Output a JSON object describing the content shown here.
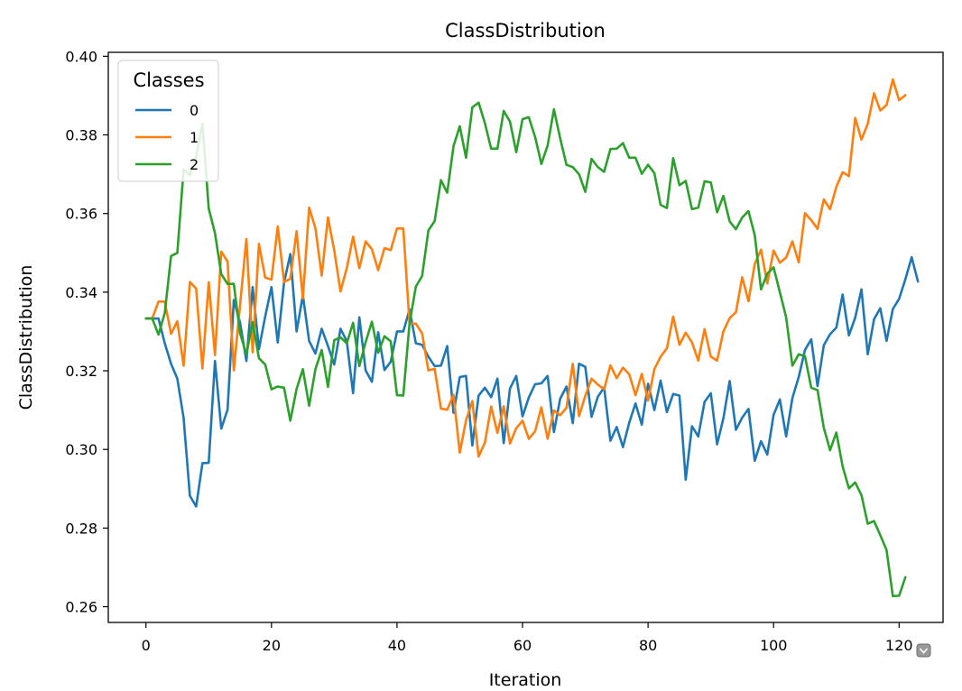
{
  "chart_data": {
    "type": "line",
    "title": "ClassDistribution",
    "xlabel": "Iteration",
    "ylabel": "ClassDistribution",
    "xlim": [
      -6,
      127
    ],
    "ylim": [
      0.256,
      0.401
    ],
    "xticks": [
      "0",
      "20",
      "40",
      "60",
      "80",
      "100",
      "120"
    ],
    "yticks": [
      "0.26",
      "0.28",
      "0.30",
      "0.32",
      "0.34",
      "0.36",
      "0.38",
      "0.40"
    ],
    "grid": false,
    "legend": {
      "title": "Classes",
      "placement": "top-left"
    },
    "series": [
      {
        "name": "0",
        "color": "#1f77b4",
        "values": [
          0.3333,
          0.3333,
          0.3333,
          0.327,
          0.3218,
          0.318,
          0.308,
          0.2882,
          0.2855,
          0.2965,
          0.2966,
          0.3225,
          0.3053,
          0.3101,
          0.338,
          0.3322,
          0.3225,
          0.3413,
          0.3255,
          0.3338,
          0.3413,
          0.3272,
          0.3424,
          0.3497,
          0.33,
          0.3392,
          0.3276,
          0.3244,
          0.3307,
          0.3263,
          0.3216,
          0.3307,
          0.3275,
          0.3143,
          0.3336,
          0.3201,
          0.3172,
          0.3298,
          0.3202,
          0.3223,
          0.33,
          0.33,
          0.3356,
          0.327,
          0.3266,
          0.3236,
          0.3212,
          0.3213,
          0.3263,
          0.3093,
          0.3184,
          0.3187,
          0.301,
          0.3137,
          0.3157,
          0.3133,
          0.318,
          0.3016,
          0.3155,
          0.3187,
          0.3084,
          0.3132,
          0.3166,
          0.3168,
          0.3187,
          0.3044,
          0.3129,
          0.316,
          0.3067,
          0.3218,
          0.321,
          0.3083,
          0.3134,
          0.3158,
          0.3022,
          0.3057,
          0.3006,
          0.3068,
          0.3117,
          0.3063,
          0.3167,
          0.31,
          0.3175,
          0.3095,
          0.3141,
          0.3137,
          0.2923,
          0.3059,
          0.3033,
          0.3121,
          0.3143,
          0.3013,
          0.3079,
          0.3174,
          0.305,
          0.3081,
          0.3103,
          0.2971,
          0.3021,
          0.2987,
          0.3088,
          0.3127,
          0.3033,
          0.3131,
          0.3184,
          0.3253,
          0.328,
          0.3161,
          0.3265,
          0.3293,
          0.331,
          0.3394,
          0.329,
          0.3335,
          0.3407,
          0.3242,
          0.3331,
          0.3359,
          0.3276,
          0.3357,
          0.3383,
          0.3433,
          0.3489,
          0.3427
        ]
      },
      {
        "name": "1",
        "color": "#ff7f0e",
        "values": [
          0.3333,
          0.3333,
          0.3376,
          0.3376,
          0.3294,
          0.3326,
          0.3213,
          0.3426,
          0.3409,
          0.3206,
          0.3425,
          0.324,
          0.3503,
          0.3478,
          0.3201,
          0.3368,
          0.3535,
          0.3247,
          0.3523,
          0.3437,
          0.3432,
          0.3567,
          0.3426,
          0.3434,
          0.3555,
          0.3384,
          0.3615,
          0.3563,
          0.3442,
          0.359,
          0.3506,
          0.3402,
          0.3461,
          0.3541,
          0.3461,
          0.3529,
          0.3509,
          0.3456,
          0.3512,
          0.3507,
          0.3562,
          0.3562,
          0.332,
          0.332,
          0.3295,
          0.3201,
          0.3205,
          0.3104,
          0.3101,
          0.3139,
          0.2992,
          0.3074,
          0.3123,
          0.2982,
          0.3017,
          0.3109,
          0.3042,
          0.311,
          0.3015,
          0.3054,
          0.3073,
          0.3027,
          0.3046,
          0.3107,
          0.3027,
          0.3099,
          0.3087,
          0.3106,
          0.3218,
          0.3085,
          0.3136,
          0.318,
          0.3165,
          0.3153,
          0.3214,
          0.3181,
          0.3208,
          0.3191,
          0.3138,
          0.3192,
          0.3124,
          0.3204,
          0.3236,
          0.3257,
          0.3338,
          0.3266,
          0.3297,
          0.3272,
          0.3226,
          0.3306,
          0.3236,
          0.3226,
          0.33,
          0.3334,
          0.3349,
          0.3438,
          0.3377,
          0.3472,
          0.3508,
          0.3422,
          0.3506,
          0.3475,
          0.3488,
          0.3529,
          0.3476,
          0.3601,
          0.3583,
          0.3561,
          0.3636,
          0.3611,
          0.3668,
          0.3705,
          0.3695,
          0.3843,
          0.3788,
          0.3828,
          0.3906,
          0.3862,
          0.3876,
          0.3941,
          0.3888,
          0.3901
        ]
      },
      {
        "name": "2",
        "color": "#2ca02c",
        "values": [
          0.3333,
          0.3333,
          0.3292,
          0.3347,
          0.3492,
          0.35,
          0.3712,
          0.3698,
          0.3745,
          0.3829,
          0.3613,
          0.355,
          0.3446,
          0.3421,
          0.3421,
          0.3295,
          0.3242,
          0.3324,
          0.3232,
          0.3216,
          0.3153,
          0.316,
          0.3157,
          0.3073,
          0.3154,
          0.3204,
          0.3111,
          0.3204,
          0.3253,
          0.3159,
          0.3278,
          0.3285,
          0.327,
          0.3322,
          0.3212,
          0.3273,
          0.3325,
          0.3246,
          0.3288,
          0.3275,
          0.3138,
          0.3137,
          0.3321,
          0.3414,
          0.3441,
          0.3557,
          0.3581,
          0.3685,
          0.3653,
          0.3771,
          0.3822,
          0.3742,
          0.387,
          0.3882,
          0.383,
          0.3765,
          0.3765,
          0.3861,
          0.3834,
          0.3756,
          0.384,
          0.3845,
          0.3795,
          0.3726,
          0.3773,
          0.3865,
          0.3791,
          0.3724,
          0.3718,
          0.37,
          0.3655,
          0.3739,
          0.3718,
          0.3706,
          0.3764,
          0.3765,
          0.3779,
          0.3742,
          0.3742,
          0.3701,
          0.3724,
          0.3703,
          0.3622,
          0.3614,
          0.3741,
          0.3672,
          0.3683,
          0.3611,
          0.3615,
          0.3682,
          0.3679,
          0.3603,
          0.3645,
          0.358,
          0.356,
          0.359,
          0.3606,
          0.3545,
          0.3407,
          0.3447,
          0.3463,
          0.34,
          0.3336,
          0.3213,
          0.3242,
          0.3237,
          0.3157,
          0.3151,
          0.3055,
          0.2998,
          0.3043,
          0.2957,
          0.2901,
          0.2916,
          0.2884,
          0.2811,
          0.2818,
          0.2782,
          0.2744,
          0.2627,
          0.2628,
          0.2675
        ]
      }
    ]
  }
}
